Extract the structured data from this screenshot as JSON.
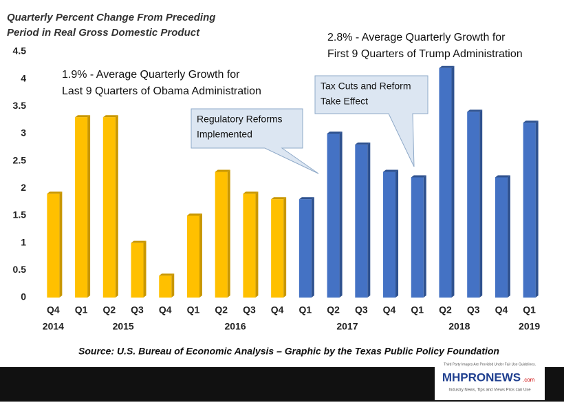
{
  "chart_data": {
    "type": "bar",
    "title_lines": [
      "Quarterly Percent Change From Preceding",
      "Period in Real Gross Domestic Product"
    ],
    "groups": [
      {
        "label": "2014",
        "quarters": [
          "Q4"
        ]
      },
      {
        "label": "2015",
        "quarters": [
          "Q1",
          "Q2",
          "Q3",
          "Q4"
        ]
      },
      {
        "label": "2016",
        "quarters": [
          "Q1",
          "Q2",
          "Q3",
          "Q4"
        ]
      },
      {
        "label": "2017",
        "quarters": [
          "Q1",
          "Q2",
          "Q3",
          "Q4"
        ]
      },
      {
        "label": "2018",
        "quarters": [
          "Q1",
          "Q2",
          "Q3",
          "Q4"
        ]
      },
      {
        "label": "2019",
        "quarters": [
          "Q1"
        ]
      }
    ],
    "values": [
      1.9,
      3.3,
      3.3,
      1.0,
      0.4,
      1.5,
      2.3,
      1.9,
      1.8,
      1.8,
      3.0,
      2.8,
      2.3,
      2.2,
      4.2,
      3.4,
      2.2,
      3.2
    ],
    "colors": [
      "#ffc000",
      "#ffc000",
      "#ffc000",
      "#ffc000",
      "#ffc000",
      "#ffc000",
      "#ffc000",
      "#ffc000",
      "#ffc000",
      "#4472c4",
      "#4472c4",
      "#4472c4",
      "#4472c4",
      "#4472c4",
      "#4472c4",
      "#4472c4",
      "#4472c4",
      "#4472c4"
    ],
    "ylim": [
      0,
      4.5
    ],
    "yticks": [
      0,
      0.5,
      1,
      1.5,
      2,
      2.5,
      3,
      3.5,
      4,
      4.5
    ],
    "grid": false,
    "annotations": {
      "obama": [
        "1.9% - Average Quarterly Growth for",
        "Last 9 Quarters of Obama Administration"
      ],
      "trump": [
        "2.8% - Average Quarterly Growth for",
        "First 9 Quarters of Trump Administration"
      ],
      "regulatory": [
        "Regulatory Reforms",
        "Implemented"
      ],
      "tax": [
        "Tax Cuts and Reform",
        "Take Effect"
      ]
    },
    "source": "Source: U.S. Bureau of Economic Analysis – Graphic by the Texas Public Policy Foundation"
  },
  "footer": {
    "fair_use": "Third Party Images Are Provided Under Fair Use Guidelines.",
    "logo": "MHPRONEWS",
    "logo_suffix": ".com",
    "tagline": "Industry News, Tips and Views Pros can Use"
  }
}
